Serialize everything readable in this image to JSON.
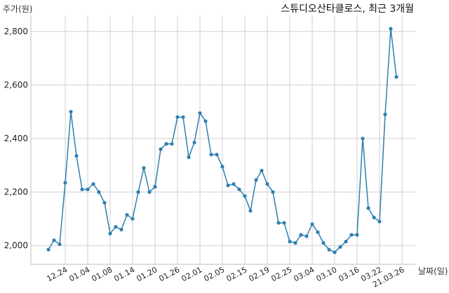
{
  "chart_data": {
    "type": "line",
    "title": "스튜디오산타클로스, 최근 3개월",
    "ylabel": "주가(원)",
    "xlabel": "날짜(일)",
    "ylim": [
      1930,
      2860
    ],
    "yticks": [
      2000,
      2200,
      2400,
      2600,
      2800
    ],
    "ytick_labels": [
      "2,000",
      "2,200",
      "2,400",
      "2,600",
      "2,800"
    ],
    "xtick_labels": [
      "12.24",
      "01.04",
      "01.08",
      "01.14",
      "01.20",
      "01.26",
      "02.01",
      "02.05",
      "02.15",
      "02.19",
      "02.25",
      "03.04",
      "03.10",
      "03.16",
      "03.22",
      "21.03.26"
    ],
    "xtick_index": [
      3,
      7,
      11,
      15,
      19,
      23,
      27,
      31,
      35,
      39,
      43,
      47,
      51,
      55,
      59,
      63
    ],
    "grid": true,
    "line_color": "#2f7fb0",
    "series": [
      {
        "values": [
          1985,
          2020,
          2005,
          2235,
          2500,
          2335,
          2210,
          2210,
          2230,
          2200,
          2160,
          2045,
          2070,
          2060,
          2115,
          2100,
          2200,
          2290,
          2200,
          2220,
          2360,
          2380,
          2380,
          2480,
          2480,
          2330,
          2385,
          2495,
          2465,
          2340,
          2340,
          2295,
          2225,
          2230,
          2210,
          2185,
          2130,
          2245,
          2280,
          2230,
          2200,
          2085,
          2085,
          2015,
          2010,
          2040,
          2035,
          2080,
          2050,
          2010,
          1985,
          1975,
          1995,
          2015,
          2040,
          2040,
          2400,
          2140,
          2105,
          2090,
          2490,
          2810,
          2630
        ]
      }
    ]
  }
}
